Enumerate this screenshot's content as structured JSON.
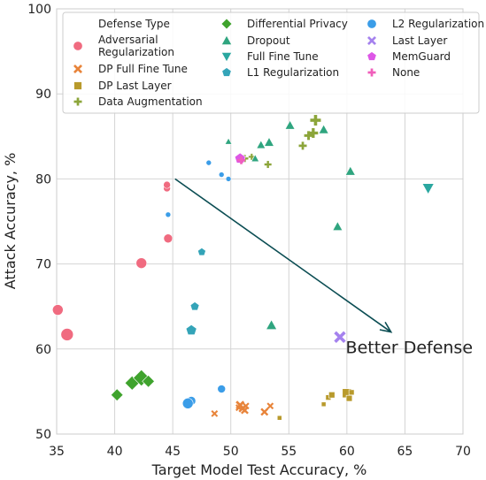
{
  "chart_data": {
    "type": "scatter",
    "xlabel": "Target Model Test Accuracy, %",
    "ylabel": "Attack Accuracy, %",
    "xlim": [
      35,
      70
    ],
    "ylim": [
      50,
      100
    ],
    "xticks": [
      35,
      40,
      45,
      50,
      55,
      60,
      65,
      70
    ],
    "yticks": [
      50,
      60,
      70,
      80,
      90,
      100
    ],
    "grid": true,
    "legend": {
      "title": "Defense Type",
      "placement": "top",
      "columns": 3
    },
    "annotation": {
      "text": "Better Defense",
      "arrow_from": [
        45.2,
        80.0
      ],
      "arrow_to": [
        63.8,
        62.0
      ],
      "text_at": [
        59.9,
        59.5
      ],
      "color": "#0b4d53"
    },
    "series": [
      {
        "name": "Adversarial\nRegularization",
        "marker": "circle",
        "color": "#f06b80",
        "points": [
          [
            35.1,
            64.6,
            6
          ],
          [
            35.9,
            61.7,
            7
          ],
          [
            42.3,
            70.1,
            6
          ],
          [
            44.6,
            73.0,
            5
          ],
          [
            44.5,
            78.9,
            4
          ],
          [
            44.5,
            79.3,
            4
          ]
        ]
      },
      {
        "name": "DP Full Fine Tune",
        "marker": "x",
        "color": "#e8843a",
        "points": [
          [
            48.6,
            52.4,
            3.5
          ],
          [
            50.8,
            53.4,
            4.5
          ],
          [
            51.0,
            53.0,
            4
          ],
          [
            51.2,
            52.8,
            4
          ],
          [
            50.7,
            53.1,
            3.5
          ],
          [
            51.3,
            53.3,
            3.5
          ],
          [
            52.9,
            52.6,
            4
          ],
          [
            53.4,
            53.3,
            3.5
          ]
        ]
      },
      {
        "name": "DP Last Layer",
        "marker": "square",
        "color": "#b89a2c",
        "points": [
          [
            54.2,
            51.9,
            3
          ],
          [
            58.0,
            53.5,
            3
          ],
          [
            58.4,
            54.3,
            3.5
          ],
          [
            58.7,
            54.6,
            4
          ],
          [
            60.0,
            54.8,
            6
          ],
          [
            60.2,
            54.2,
            4
          ],
          [
            60.4,
            54.9,
            3.5
          ]
        ]
      },
      {
        "name": "Data Augmentation",
        "marker": "plus",
        "color": "#8ca53a",
        "points": [
          [
            51.2,
            82.4,
            4
          ],
          [
            51.8,
            82.6,
            3.5
          ],
          [
            53.2,
            81.7,
            4
          ],
          [
            56.2,
            83.9,
            4.5
          ],
          [
            56.7,
            85.1,
            5
          ],
          [
            57.1,
            85.4,
            5.5
          ],
          [
            57.3,
            86.9,
            6
          ]
        ]
      },
      {
        "name": "Differential Privacy",
        "marker": "diamond",
        "color": "#3fa32d",
        "points": [
          [
            40.2,
            54.6,
            6
          ],
          [
            41.5,
            56.0,
            7
          ],
          [
            42.3,
            56.6,
            8
          ],
          [
            42.9,
            56.2,
            6
          ]
        ]
      },
      {
        "name": "Dropout",
        "marker": "triangle-up",
        "color": "#2fa57f",
        "points": [
          [
            49.8,
            84.4,
            3.5
          ],
          [
            52.1,
            82.4,
            4
          ],
          [
            52.6,
            84.0,
            4.5
          ],
          [
            53.3,
            84.3,
            5
          ],
          [
            55.1,
            86.3,
            5
          ],
          [
            58.0,
            85.8,
            5
          ],
          [
            60.3,
            80.9,
            5
          ],
          [
            59.2,
            74.4,
            5
          ],
          [
            53.5,
            62.8,
            5.5
          ]
        ]
      },
      {
        "name": "Full Fine Tune",
        "marker": "triangle-down",
        "color": "#2aa7a0",
        "points": [
          [
            67.0,
            78.9,
            6
          ]
        ]
      },
      {
        "name": "L1 Regularization",
        "marker": "pentagon",
        "color": "#34a4b8",
        "points": [
          [
            47.5,
            71.4,
            4.5
          ],
          [
            46.9,
            65.0,
            5
          ],
          [
            46.6,
            62.2,
            6
          ]
        ]
      },
      {
        "name": "L2 Regularization",
        "marker": "circle",
        "color": "#3b9de8",
        "points": [
          [
            48.1,
            81.9,
            3
          ],
          [
            49.2,
            80.5,
            3
          ],
          [
            49.8,
            80.0,
            3
          ],
          [
            44.6,
            75.8,
            3
          ],
          [
            49.2,
            55.3,
            4.5
          ],
          [
            46.6,
            53.9,
            5
          ],
          [
            46.3,
            53.6,
            6
          ]
        ]
      },
      {
        "name": "Last Layer",
        "marker": "x",
        "color": "#a582ee",
        "points": [
          [
            59.4,
            61.4,
            6
          ]
        ]
      },
      {
        "name": "MemGuard",
        "marker": "pentagon",
        "color": "#dd57e6",
        "points": [
          [
            50.8,
            82.4,
            6
          ]
        ]
      },
      {
        "name": "None",
        "marker": "plus",
        "color": "#f05fbb",
        "points": [
          [
            50.9,
            82.2,
            4.5
          ]
        ]
      }
    ]
  }
}
